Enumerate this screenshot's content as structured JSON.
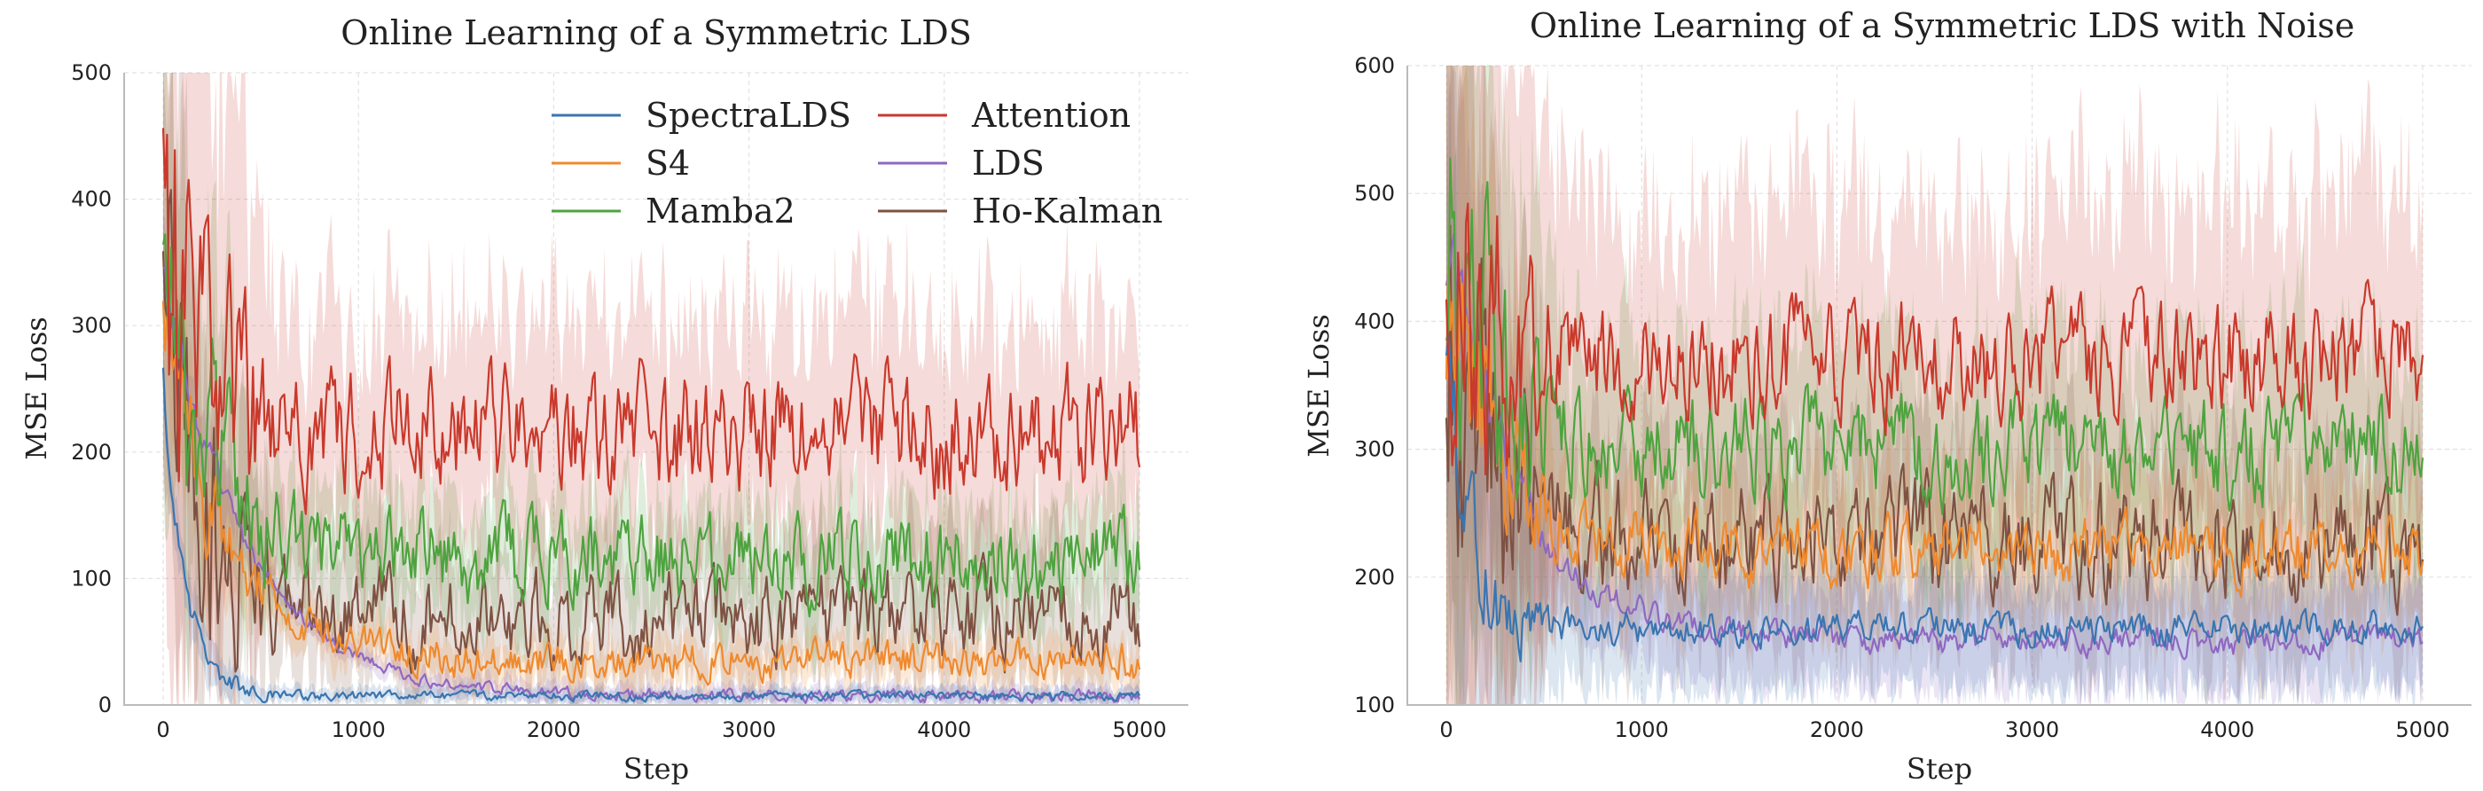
{
  "chart_data": [
    {
      "type": "line",
      "title": "Online Learning of a Symmetric LDS",
      "xlabel": "Step",
      "ylabel": "MSE Loss",
      "xlim": [
        -200,
        5250
      ],
      "ylim": [
        0,
        500
      ],
      "xticks": [
        0,
        1000,
        2000,
        3000,
        4000,
        5000
      ],
      "yticks": [
        0,
        100,
        200,
        300,
        400,
        500
      ],
      "legend_position": "upper-right",
      "legend_columns": 2,
      "series": [
        {
          "name": "SpectraLDS",
          "color": "#3a75b0",
          "start": 260,
          "end": 7,
          "tau": 110,
          "noise": 3,
          "band": 6
        },
        {
          "name": "S4",
          "color": "#ef8a2e",
          "start": 300,
          "end": 35,
          "tau": 330,
          "noise": 12,
          "band": 18
        },
        {
          "name": "Mamba2",
          "color": "#4ea33f",
          "start": 310,
          "end": 115,
          "tau": 280,
          "noise": 28,
          "band": 45
        },
        {
          "name": "Attention",
          "color": "#c9392c",
          "start": 360,
          "end": 215,
          "tau": 200,
          "noise": 38,
          "band": 90
        },
        {
          "name": "LDS",
          "color": "#8f68c1",
          "start": 340,
          "end": 7,
          "tau": 420,
          "noise": 4,
          "band": 8
        },
        {
          "name": "Ho-Kalman",
          "color": "#7e5243",
          "start": 330,
          "end": 70,
          "tau": 180,
          "noise": 28,
          "band": 55
        }
      ]
    },
    {
      "type": "line",
      "title": "Online Learning of a Symmetric LDS with Noise",
      "xlabel": "Step",
      "ylabel": "MSE Loss",
      "xlim": [
        -200,
        5250
      ],
      "ylim": [
        100,
        600
      ],
      "xticks": [
        0,
        1000,
        2000,
        3000,
        4000,
        5000
      ],
      "yticks": [
        100,
        200,
        300,
        400,
        500,
        600
      ],
      "series": [
        {
          "name": "SpectraLDS",
          "color": "#3a75b0",
          "start": 400,
          "end": 160,
          "tau": 110,
          "noise": 10,
          "band": 45
        },
        {
          "name": "S4",
          "color": "#ef8a2e",
          "start": 420,
          "end": 220,
          "tau": 300,
          "noise": 20,
          "band": 55
        },
        {
          "name": "Mamba2",
          "color": "#4ea33f",
          "start": 480,
          "end": 300,
          "tau": 240,
          "noise": 32,
          "band": 80
        },
        {
          "name": "Attention",
          "color": "#c9392c",
          "start": 500,
          "end": 370,
          "tau": 180,
          "noise": 35,
          "band": 120
        },
        {
          "name": "LDS",
          "color": "#8f68c1",
          "start": 460,
          "end": 150,
          "tau": 380,
          "noise": 9,
          "band": 40
        },
        {
          "name": "Ho-Kalman",
          "color": "#7e5243",
          "start": 460,
          "end": 230,
          "tau": 200,
          "noise": 35,
          "band": 75
        }
      ]
    }
  ]
}
